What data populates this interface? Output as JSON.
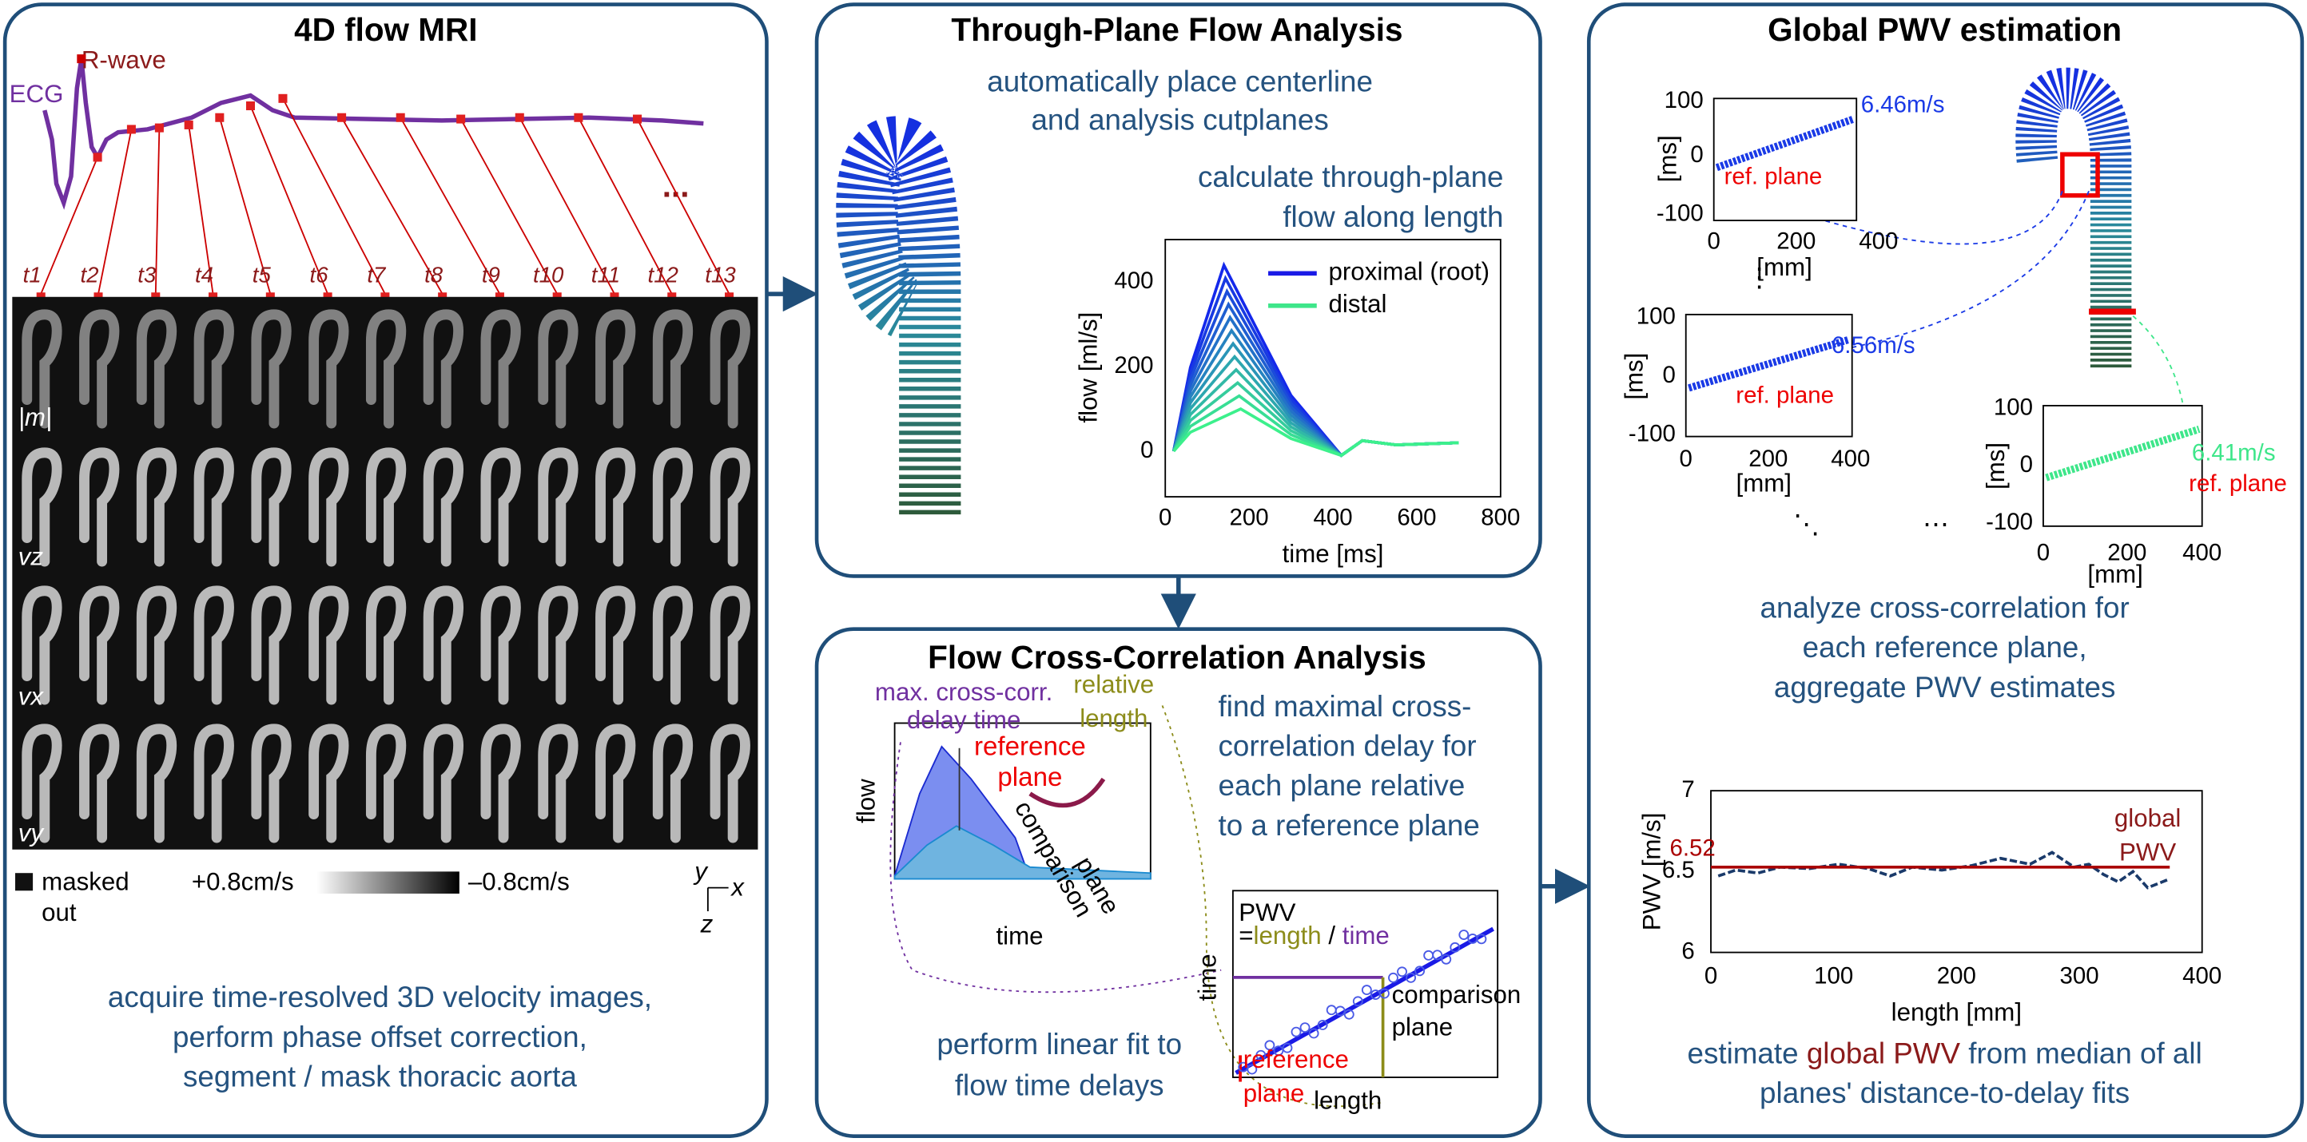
{
  "panels": {
    "mri": {
      "title": "4D flow MRI",
      "ecg_label": "ECG",
      "rwave_label": "R-wave",
      "ellipsis": "...",
      "time_labels": [
        "t1",
        "t2",
        "t3",
        "t4",
        "t5",
        "t6",
        "t7",
        "t8",
        "t9",
        "t10",
        "t11",
        "t12",
        "t13"
      ],
      "row_labels": [
        "|m|",
        "vz",
        "vx",
        "vy"
      ],
      "legend": {
        "masked": [
          "masked",
          "out"
        ],
        "pos": "+0.8cm/s",
        "neg": "–0.8cm/s"
      },
      "axes": [
        "y",
        "x",
        "z"
      ],
      "caption": [
        "acquire time-resolved 3D velocity images,",
        "perform phase offset correction,",
        "segment / mask thoracic aorta"
      ]
    },
    "through_plane": {
      "title": "Through-Plane Flow Analysis",
      "text1": [
        "automatically place centerline",
        "and analysis cutplanes"
      ],
      "text2": [
        "calculate through-plane",
        "flow along length"
      ],
      "plot": {
        "ylabel": "flow [ml/s]",
        "xlabel": "time [ms]",
        "yticks": [
          0,
          200,
          400
        ],
        "xticks": [
          0,
          200,
          400,
          600,
          800
        ],
        "legend": [
          "proximal (root)",
          "distal"
        ]
      }
    },
    "cross_corr": {
      "title": "Flow Cross-Correlation Analysis",
      "max_delay": [
        "max. cross-corr.",
        "delay time"
      ],
      "relative_length": [
        "relative",
        "length"
      ],
      "reference_plane": [
        "reference",
        "plane"
      ],
      "flow_label": "flow",
      "time_label": "time",
      "comparison_plane": [
        "comparison",
        "plane"
      ],
      "text": [
        "find maximal cross-",
        "correlation delay for",
        "each plane relative",
        "to a reference plane"
      ],
      "inset": {
        "pwv": "PWV",
        "eq": [
          "=",
          "length",
          " / ",
          "time"
        ],
        "ylabel": "time",
        "comparison": [
          "comparison",
          "plane"
        ],
        "reference": [
          "reference",
          "plane"
        ],
        "xlabel": "length"
      },
      "caption": [
        "perform linear fit to",
        "flow time delays"
      ]
    },
    "pwv": {
      "title": "Global PWV estimation",
      "small_plots": [
        {
          "ylabel": "[ms]",
          "xlabel": "[mm]",
          "yticks": [
            100,
            0,
            -100
          ],
          "xticks": [
            0,
            200,
            400
          ],
          "speed": "6.46m/s",
          "ref": "ref. plane"
        },
        {
          "ylabel": "[ms]",
          "xlabel": "[mm]",
          "yticks": [
            100,
            0,
            -100
          ],
          "xticks": [
            0,
            200,
            400
          ],
          "speed": "6.56m/s",
          "ref": "ref. plane"
        },
        {
          "ylabel": "[ms]",
          "xlabel": "[mm]",
          "yticks": [
            100,
            0,
            -100
          ],
          "xticks": [
            0,
            200,
            400
          ],
          "speed": "6.41m/s",
          "ref": "ref. plane"
        }
      ],
      "dots": [
        "⋮",
        "⋱",
        "⋯"
      ],
      "caption": [
        "analyze cross-correlation for",
        "each reference plane,",
        "aggregate PWV estimates"
      ],
      "plot": {
        "ylabel": "PWV [m/s]",
        "xlabel": "length [mm]",
        "yticks": [
          6,
          6.5,
          7
        ],
        "xticks": [
          0,
          100,
          200,
          300,
          400
        ],
        "median": "6.52",
        "global": [
          "global",
          "PWV"
        ]
      },
      "caption2": [
        "estimate ",
        "global PWV",
        " from median of all",
        "planes' distance-to-delay fits"
      ]
    }
  }
}
